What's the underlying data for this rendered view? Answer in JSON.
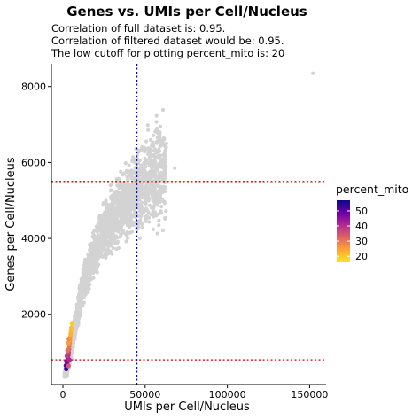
{
  "chart_data": {
    "type": "scatter",
    "title": "Genes vs. UMIs per Cell/Nucleus",
    "subtitle_lines": [
      "Correlation of full dataset is: 0.95.",
      "Correlation of filtered dataset would be: 0.95.",
      "The low cutoff for plotting percent_mito is: 20"
    ],
    "xlabel": "UMIs per Cell/Nucleus",
    "ylabel": "Genes per Cell/Nucleus",
    "xlim": [
      -7000,
      160000
    ],
    "ylim": [
      150,
      8600
    ],
    "x_ticks": [
      0,
      50000,
      100000,
      150000
    ],
    "x_tick_labels": [
      "0",
      "50000",
      "100000",
      "150000"
    ],
    "y_ticks": [
      2000,
      4000,
      6000,
      8000
    ],
    "y_tick_labels": [
      "2000",
      "4000",
      "6000",
      "8000"
    ],
    "grid": false,
    "point_color_default": "#d3d3d3",
    "vertical_cutoff": {
      "x": 45000,
      "color": "#0000cc",
      "style": "dotted"
    },
    "horizontal_cutoffs": [
      {
        "y": 5500,
        "color": "#dd0000",
        "style": "dotted"
      },
      {
        "y": 800,
        "color": "#dd0000",
        "style": "dotted"
      }
    ],
    "grey_cloud": {
      "description_points": [
        [
          3000,
          700
        ],
        [
          8000,
          1800
        ],
        [
          12000,
          2700
        ],
        [
          18000,
          3500
        ],
        [
          25000,
          4200
        ],
        [
          35000,
          4800
        ],
        [
          45000,
          5200
        ],
        [
          55000,
          5700
        ],
        [
          65000,
          6100
        ]
      ]
    },
    "outliers": [
      {
        "x": 152000,
        "y": 8350
      },
      {
        "x": 59000,
        "y": 6650
      },
      {
        "x": 63000,
        "y": 6500
      },
      {
        "x": 56000,
        "y": 6350
      },
      {
        "x": 68000,
        "y": 5850
      }
    ],
    "colored_points": [
      {
        "x": 2000,
        "y": 560,
        "percent_mito": 55
      },
      {
        "x": 2300,
        "y": 620,
        "percent_mito": 52
      },
      {
        "x": 2600,
        "y": 700,
        "percent_mito": 48
      },
      {
        "x": 2900,
        "y": 760,
        "percent_mito": 45
      },
      {
        "x": 3100,
        "y": 840,
        "percent_mito": 42
      },
      {
        "x": 3300,
        "y": 920,
        "percent_mito": 40
      },
      {
        "x": 3500,
        "y": 1000,
        "percent_mito": 36
      },
      {
        "x": 3700,
        "y": 1080,
        "percent_mito": 33
      },
      {
        "x": 3900,
        "y": 1160,
        "percent_mito": 30
      },
      {
        "x": 4100,
        "y": 1240,
        "percent_mito": 28
      },
      {
        "x": 4300,
        "y": 1320,
        "percent_mito": 26
      },
      {
        "x": 4500,
        "y": 1400,
        "percent_mito": 24
      },
      {
        "x": 4700,
        "y": 1480,
        "percent_mito": 23
      },
      {
        "x": 4900,
        "y": 1560,
        "percent_mito": 22
      },
      {
        "x": 5100,
        "y": 1640,
        "percent_mito": 21
      },
      {
        "x": 5400,
        "y": 1760,
        "percent_mito": 20
      },
      {
        "x": 2400,
        "y": 900,
        "percent_mito": 38
      },
      {
        "x": 2800,
        "y": 1050,
        "percent_mito": 31
      },
      {
        "x": 3200,
        "y": 1250,
        "percent_mito": 25
      },
      {
        "x": 3600,
        "y": 1350,
        "percent_mito": 27
      },
      {
        "x": 1800,
        "y": 650,
        "percent_mito": 50
      },
      {
        "x": 2100,
        "y": 760,
        "percent_mito": 46
      },
      {
        "x": 4000,
        "y": 800,
        "percent_mito": 41
      },
      {
        "x": 3400,
        "y": 640,
        "percent_mito": 34
      }
    ],
    "legend": {
      "title": "percent_mito",
      "placement": "right",
      "min": 16,
      "max": 57,
      "ticks": [
        20,
        30,
        40,
        50
      ],
      "tick_labels": [
        "20",
        "30",
        "40",
        "50"
      ],
      "colors": [
        "#fde725",
        "#fca636",
        "#e16462",
        "#b12a90",
        "#6a00a8",
        "#0d0887"
      ]
    }
  }
}
